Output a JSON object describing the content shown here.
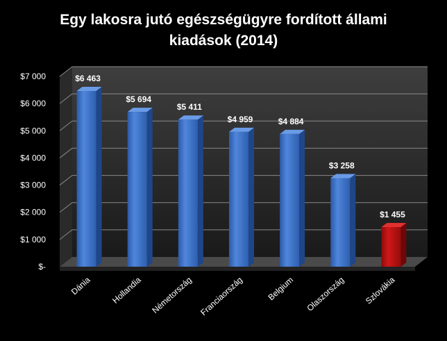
{
  "chart_data": {
    "type": "bar",
    "title_lines": [
      "Egy lakosra jutó egészségügyre fordított állami",
      "kiadások (2014)"
    ],
    "categories": [
      "Dánia",
      "Hollandia",
      "Németország",
      "Franciaország",
      "Belgium",
      "Olaszország",
      "Szlovákia"
    ],
    "values": [
      6463,
      5694,
      5411,
      4959,
      4884,
      3258,
      1455
    ],
    "data_labels": [
      "$6 463",
      "$5 694",
      "$5 411",
      "$4 959",
      "$4 884",
      "$3 258",
      "$1 455"
    ],
    "yticks": [
      0,
      1000,
      2000,
      3000,
      4000,
      5000,
      6000,
      7000
    ],
    "ytick_labels": [
      "$-",
      "$1 000",
      "$2 000",
      "$3 000",
      "$4 000",
      "$5 000",
      "$6 000",
      "$7 000"
    ],
    "ylim": [
      0,
      7000
    ],
    "grid": true,
    "legend": "none",
    "bar_color": "#3a73cc",
    "highlight_color": "#c01010",
    "highlight_category": "Szlovákia",
    "background_color": "#000000",
    "text_color": "#ffffff"
  }
}
